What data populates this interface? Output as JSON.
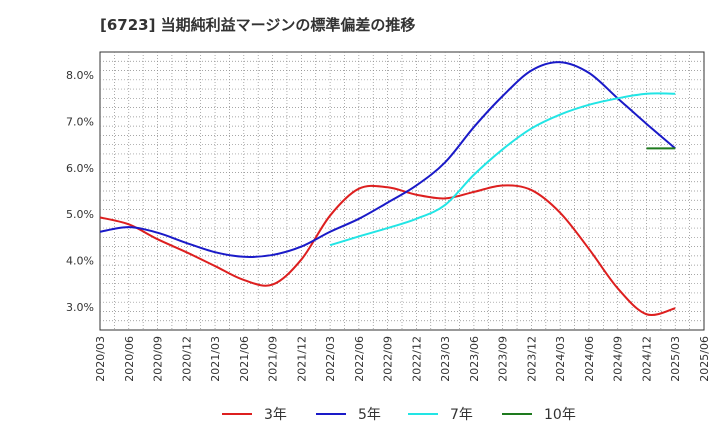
{
  "chart_data": {
    "type": "line",
    "title": "[6723]  当期純利益マージンの標準偏差の推移",
    "xlabel": "",
    "ylabel": "",
    "x_ticks": [
      "2020/03",
      "2020/06",
      "2020/09",
      "2020/12",
      "2021/03",
      "2021/06",
      "2021/09",
      "2021/12",
      "2022/03",
      "2022/06",
      "2022/09",
      "2022/12",
      "2023/03",
      "2023/06",
      "2023/09",
      "2023/12",
      "2024/03",
      "2024/06",
      "2024/09",
      "2024/12",
      "2025/03",
      "2025/06"
    ],
    "y_ticks": [
      "3.0%",
      "4.0%",
      "5.0%",
      "6.0%",
      "7.0%",
      "8.0%"
    ],
    "ylim": [
      2.5,
      8.5
    ],
    "grid": true,
    "legend_position": "bottom",
    "series": [
      {
        "name": "3年",
        "color": "#dd1f1f",
        "x": [
          "2020/03",
          "2020/06",
          "2020/09",
          "2020/12",
          "2021/03",
          "2021/06",
          "2021/09",
          "2021/12",
          "2022/03",
          "2022/06",
          "2022/09",
          "2022/12",
          "2023/03",
          "2023/06",
          "2023/09",
          "2023/12",
          "2024/03",
          "2024/06",
          "2024/09",
          "2024/12",
          "2025/03"
        ],
        "values": [
          4.93,
          4.78,
          4.46,
          4.18,
          3.88,
          3.58,
          3.48,
          4.02,
          4.97,
          5.55,
          5.58,
          5.42,
          5.34,
          5.48,
          5.62,
          5.52,
          5.03,
          4.25,
          3.4,
          2.84,
          2.97
        ]
      },
      {
        "name": "5年",
        "color": "#1a1ac8",
        "x": [
          "2020/03",
          "2020/06",
          "2020/09",
          "2020/12",
          "2021/03",
          "2021/06",
          "2021/09",
          "2021/12",
          "2022/03",
          "2022/06",
          "2022/09",
          "2022/12",
          "2023/03",
          "2023/06",
          "2023/09",
          "2023/12",
          "2024/03",
          "2024/06",
          "2024/09",
          "2024/12",
          "2025/03"
        ],
        "values": [
          4.62,
          4.72,
          4.6,
          4.38,
          4.18,
          4.08,
          4.12,
          4.3,
          4.62,
          4.9,
          5.25,
          5.62,
          6.12,
          6.88,
          7.55,
          8.1,
          8.28,
          8.05,
          7.5,
          6.95,
          6.42
        ]
      },
      {
        "name": "7年",
        "color": "#22e5e5",
        "x": [
          "2022/03",
          "2022/06",
          "2022/09",
          "2022/12",
          "2023/03",
          "2023/06",
          "2023/09",
          "2023/12",
          "2024/03",
          "2024/06",
          "2024/09",
          "2024/12",
          "2025/03"
        ],
        "values": [
          4.33,
          4.52,
          4.7,
          4.9,
          5.2,
          5.85,
          6.4,
          6.85,
          7.15,
          7.36,
          7.5,
          7.6,
          7.6
        ]
      },
      {
        "name": "10年",
        "color": "#1e7a1e",
        "x": [
          "2024/12",
          "2025/03"
        ],
        "values": [
          6.42,
          6.42
        ]
      }
    ]
  }
}
